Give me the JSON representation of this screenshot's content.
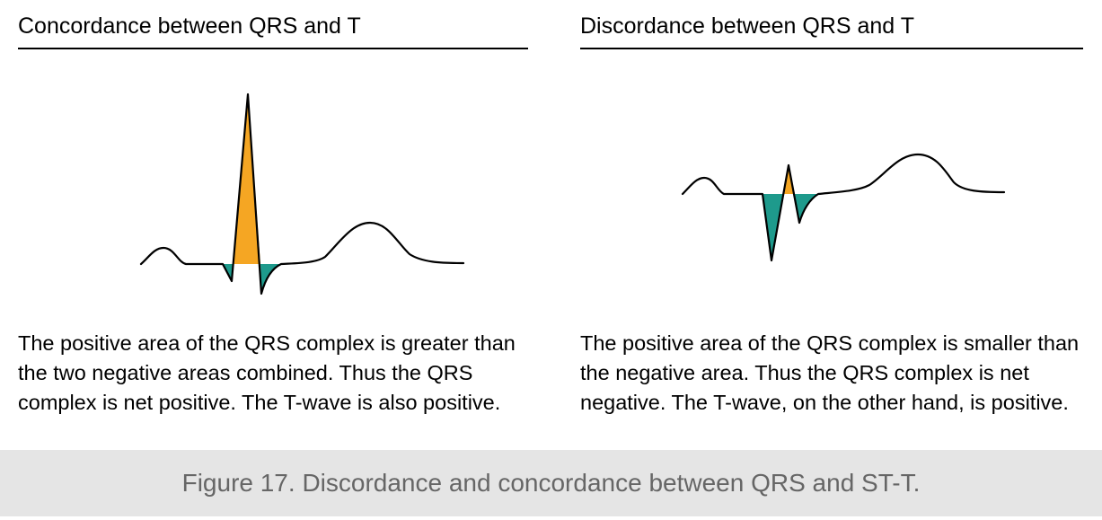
{
  "left_panel": {
    "title": "Concordance between QRS and T",
    "description": "The positive area of the QRS complex is greater than the two negative areas combined. Thus the QRS complex is net positive. The T-wave is also positive."
  },
  "right_panel": {
    "title": "Discordance between QRS and T",
    "description": "The positive area of the QRS complex is smaller than the negative area. Thus the QRS complex is net negative. The T-wave, on the other hand, is positive."
  },
  "figure_caption": "Figure 17. Discordance and concordance between QRS and ST-T.",
  "colors": {
    "positive_area": "#F5A623",
    "negative_area": "#1E9A8C",
    "trace": "#000000",
    "caption_background": "#E5E5E5",
    "caption_text": "#666666"
  }
}
